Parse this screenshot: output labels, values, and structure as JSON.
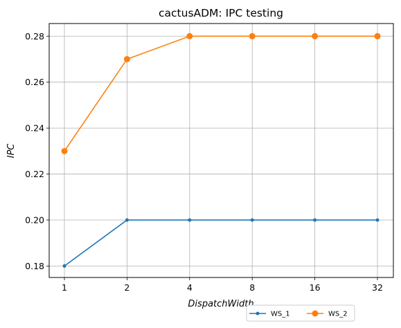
{
  "chart_data": {
    "type": "line",
    "title": "cactusADM: IPC testing",
    "xlabel": "DispatchWidth",
    "ylabel": "IPC",
    "categories": [
      "1",
      "2",
      "4",
      "8",
      "16",
      "32"
    ],
    "ylim": [
      0.175,
      0.2855
    ],
    "yticks": [
      "0.18",
      "0.20",
      "0.22",
      "0.24",
      "0.26",
      "0.28"
    ],
    "grid": true,
    "legend_position": "bottom-right, below axes, 2 columns",
    "series": [
      {
        "name": "WS_1",
        "values": [
          0.18,
          0.2,
          0.2,
          0.2,
          0.2,
          0.2
        ],
        "color": "#1f77b4",
        "marker": "small-dot"
      },
      {
        "name": "WS_2",
        "values": [
          0.23,
          0.27,
          0.28,
          0.28,
          0.28,
          0.28
        ],
        "color": "#ff7f0e",
        "marker": "large-dot"
      }
    ]
  }
}
